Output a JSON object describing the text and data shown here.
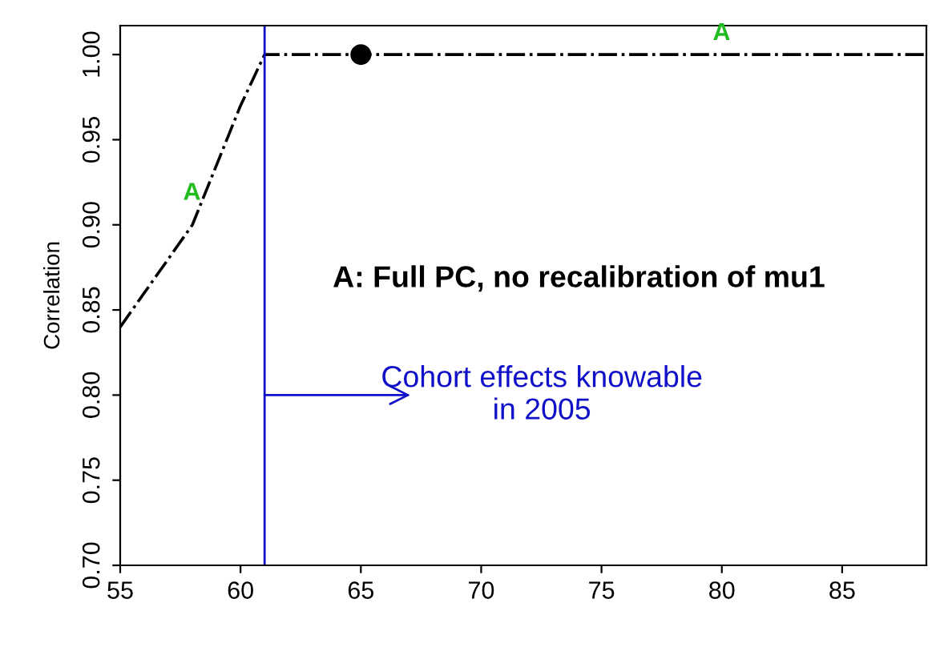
{
  "chart_data": {
    "type": "line",
    "ylabel": "Correlation",
    "series": [
      {
        "color": "#000000",
        "line_style": "dashdot",
        "marker": "none",
        "x": [
          55,
          56,
          57,
          58,
          59,
          60,
          61,
          65,
          70,
          75,
          80,
          85,
          88.5
        ],
        "values": [
          0.84,
          0.86,
          0.88,
          0.9,
          0.935,
          0.97,
          1.0,
          1.0,
          1.0,
          1.0,
          1.0,
          1.0,
          1.0
        ]
      },
      {
        "type": "scatter",
        "color": "#000000",
        "marker": "circle",
        "x": [
          65
        ],
        "values": [
          1.0
        ]
      }
    ],
    "xlim": [
      55,
      88.5
    ],
    "ylim": [
      0.7,
      1.017
    ],
    "xticks": [
      55,
      60,
      65,
      70,
      75,
      80,
      85
    ],
    "yticks": [
      {
        "value": 0.7,
        "label": "0.70"
      },
      {
        "value": 0.75,
        "label": "0.75"
      },
      {
        "value": 0.8,
        "label": "0.80"
      },
      {
        "value": 0.85,
        "label": "0.85"
      },
      {
        "value": 0.9,
        "label": "0.90"
      },
      {
        "value": 0.95,
        "label": "0.95"
      },
      {
        "value": 1.0,
        "label": "1.00"
      }
    ],
    "ref_lines": [
      {
        "axis": "x",
        "value": 61,
        "color": "#1010c8"
      }
    ],
    "annotations": [
      "A",
      "A",
      "A: Full PC, no recalibration of mu1",
      {
        "text": "Cohort effects knowable\nin 2005",
        "x": 61,
        "y": 0.8
      }
    ],
    "grid": false,
    "legend": false
  }
}
